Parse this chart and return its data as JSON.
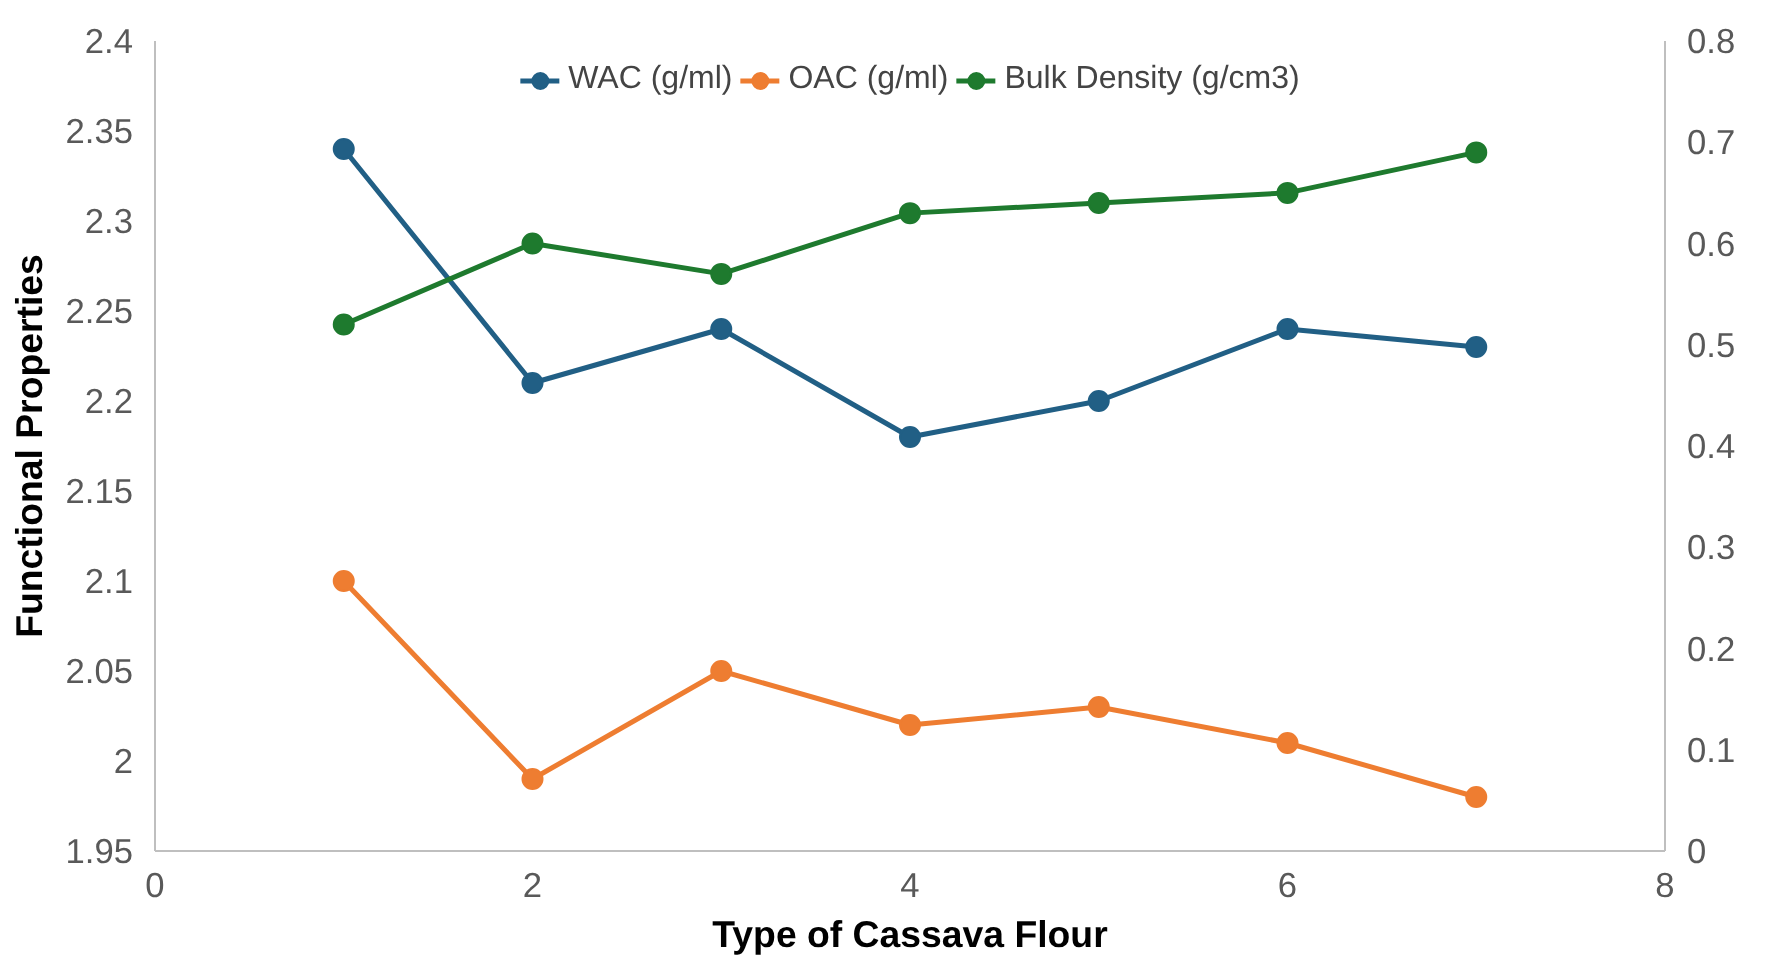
{
  "chart_data": {
    "type": "line",
    "xlabel": "Type of Cassava Flour",
    "ylabel": "Functional Properties",
    "x": [
      1,
      2,
      3,
      4,
      5,
      6,
      7
    ],
    "series": [
      {
        "name": "WAC (g/ml)",
        "color": "#215f85",
        "values": [
          2.34,
          2.21,
          2.24,
          2.18,
          2.2,
          2.24,
          2.23
        ]
      },
      {
        "name": "OAC (g/ml)",
        "color": "#ee7d31",
        "values": [
          2.1,
          1.99,
          2.05,
          2.02,
          2.03,
          2.01,
          1.98
        ]
      },
      {
        "name": "Bulk Density (g/cm3)",
        "color": "#1e7a2e",
        "axis": "y2",
        "values": [
          0.52,
          0.6,
          0.57,
          0.63,
          0.64,
          0.65,
          0.69
        ]
      }
    ],
    "xlim": [
      0,
      8
    ],
    "xticks": [
      0,
      2,
      4,
      6,
      8
    ],
    "ylim": [
      1.95,
      2.4
    ],
    "yticks": [
      1.95,
      2,
      2.05,
      2.1,
      2.15,
      2.2,
      2.25,
      2.3,
      2.35,
      2.4
    ],
    "y2lim": [
      0,
      0.8
    ],
    "y2ticks": [
      0,
      0.1,
      0.2,
      0.3,
      0.4,
      0.5,
      0.6,
      0.7,
      0.8
    ],
    "grid": false,
    "legend": "top",
    "marker": "circle",
    "line_style": "solid"
  }
}
